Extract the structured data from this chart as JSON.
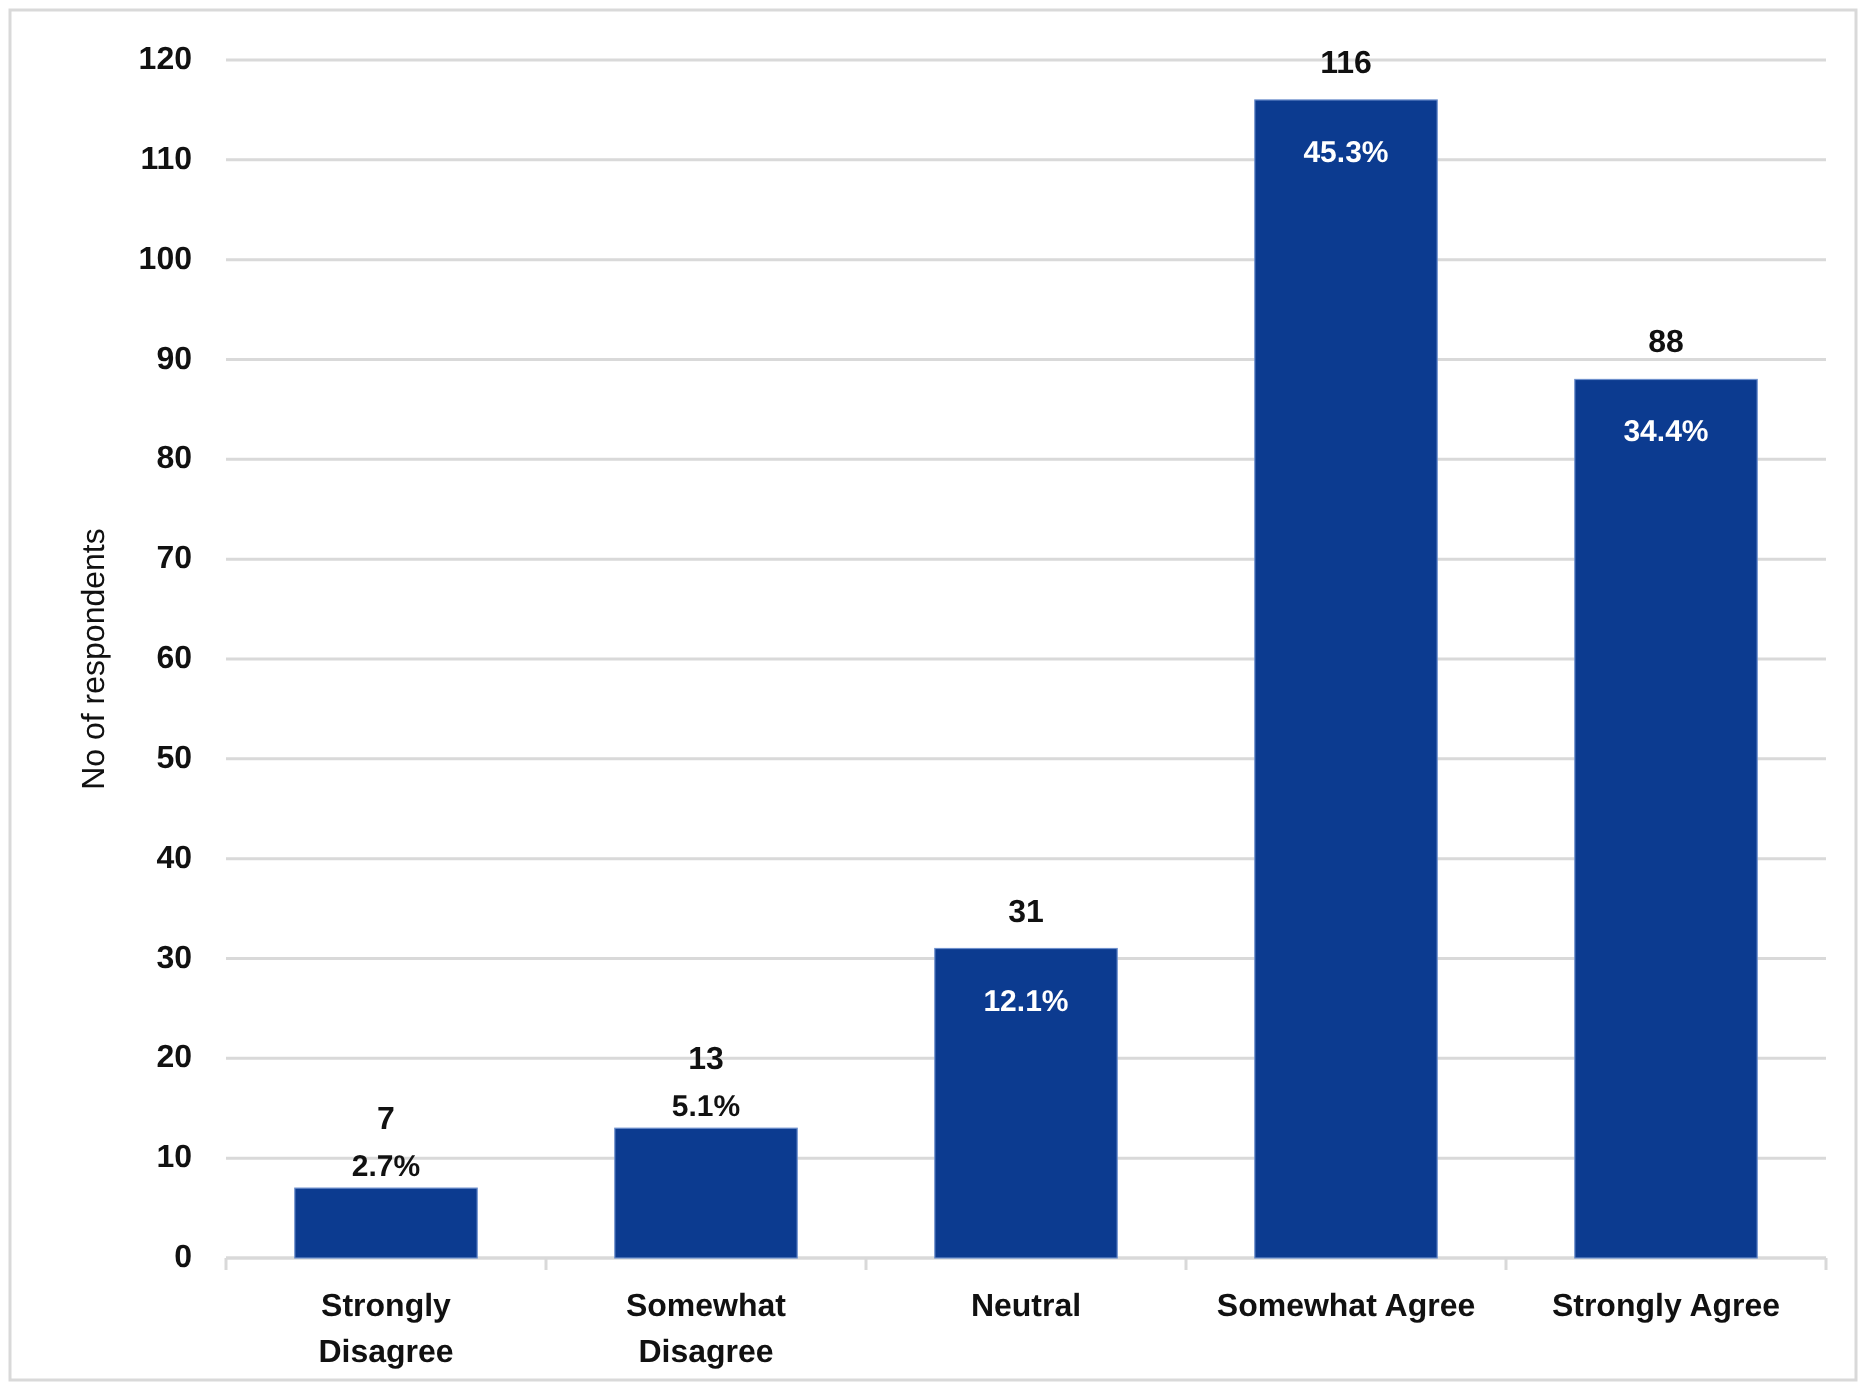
{
  "chart_data": {
    "type": "bar",
    "ylabel": "No of respondents",
    "categories": [
      "Strongly Disagree",
      "Somewhat Disagree",
      "Neutral",
      "Somewhat Agree",
      "Strongly Agree"
    ],
    "values": [
      7,
      13,
      31,
      116,
      88
    ],
    "color": "#0c3b90",
    "ylim": [
      0,
      120
    ],
    "yticks": [
      0,
      10,
      20,
      30,
      40,
      50,
      60,
      70,
      80,
      90,
      100,
      110,
      120
    ],
    "grid": "y",
    "data_labels": true,
    "annotations": [
      {
        "text": "2.7%",
        "x": "Strongly Disagree",
        "y": 7
      },
      {
        "text": "5.1%",
        "x": "Somewhat Disagree",
        "y": 13
      },
      {
        "text": "12.1%",
        "x": "Neutral",
        "y": 31
      },
      {
        "text": "45.3%",
        "x": "Somewhat Agree",
        "y": 116
      },
      {
        "text": "34.4%",
        "x": "Strongly Agree",
        "y": 88
      }
    ]
  }
}
